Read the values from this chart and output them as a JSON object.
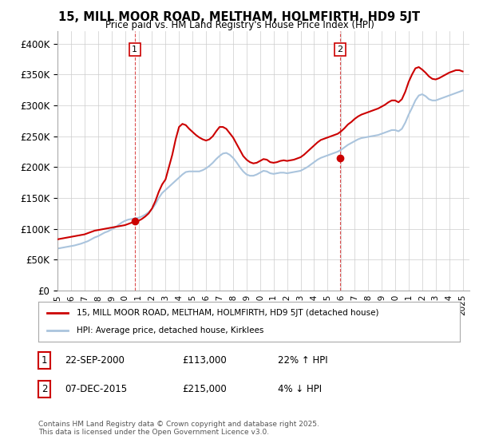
{
  "title": "15, MILL MOOR ROAD, MELTHAM, HOLMFIRTH, HD9 5JT",
  "subtitle": "Price paid vs. HM Land Registry's House Price Index (HPI)",
  "ylabel_ticks": [
    "£0",
    "£50K",
    "£100K",
    "£150K",
    "£200K",
    "£250K",
    "£300K",
    "£350K",
    "£400K"
  ],
  "ytick_values": [
    0,
    50000,
    100000,
    150000,
    200000,
    250000,
    300000,
    350000,
    400000
  ],
  "ylim": [
    0,
    420000
  ],
  "xlim_start": 1995.0,
  "xlim_end": 2025.5,
  "background_color": "#ffffff",
  "grid_color": "#cccccc",
  "hpi_color": "#aac4dd",
  "price_color": "#cc0000",
  "marker1_x": 2000.72,
  "marker1_y": 113000,
  "marker2_x": 2015.93,
  "marker2_y": 215000,
  "annotation1": "1",
  "annotation2": "2",
  "legend_label1": "15, MILL MOOR ROAD, MELTHAM, HOLMFIRTH, HD9 5JT (detached house)",
  "legend_label2": "HPI: Average price, detached house, Kirklees",
  "table_row1": [
    "1",
    "22-SEP-2000",
    "£113,000",
    "22% ↑ HPI"
  ],
  "table_row2": [
    "2",
    "07-DEC-2015",
    "£215,000",
    "4% ↓ HPI"
  ],
  "footnote": "Contains HM Land Registry data © Crown copyright and database right 2025.\nThis data is licensed under the Open Government Licence v3.0.",
  "hpi_data_x": [
    1995.0,
    1995.25,
    1995.5,
    1995.75,
    1996.0,
    1996.25,
    1996.5,
    1996.75,
    1997.0,
    1997.25,
    1997.5,
    1997.75,
    1998.0,
    1998.25,
    1998.5,
    1998.75,
    1999.0,
    1999.25,
    1999.5,
    1999.75,
    2000.0,
    2000.25,
    2000.5,
    2000.75,
    2001.0,
    2001.25,
    2001.5,
    2001.75,
    2002.0,
    2002.25,
    2002.5,
    2002.75,
    2003.0,
    2003.25,
    2003.5,
    2003.75,
    2004.0,
    2004.25,
    2004.5,
    2004.75,
    2005.0,
    2005.25,
    2005.5,
    2005.75,
    2006.0,
    2006.25,
    2006.5,
    2006.75,
    2007.0,
    2007.25,
    2007.5,
    2007.75,
    2008.0,
    2008.25,
    2008.5,
    2008.75,
    2009.0,
    2009.25,
    2009.5,
    2009.75,
    2010.0,
    2010.25,
    2010.5,
    2010.75,
    2011.0,
    2011.25,
    2011.5,
    2011.75,
    2012.0,
    2012.25,
    2012.5,
    2012.75,
    2013.0,
    2013.25,
    2013.5,
    2013.75,
    2014.0,
    2014.25,
    2014.5,
    2014.75,
    2015.0,
    2015.25,
    2015.5,
    2015.75,
    2016.0,
    2016.25,
    2016.5,
    2016.75,
    2017.0,
    2017.25,
    2017.5,
    2017.75,
    2018.0,
    2018.25,
    2018.5,
    2018.75,
    2019.0,
    2019.25,
    2019.5,
    2019.75,
    2020.0,
    2020.25,
    2020.5,
    2020.75,
    2021.0,
    2021.25,
    2021.5,
    2021.75,
    2022.0,
    2022.25,
    2022.5,
    2022.75,
    2023.0,
    2023.25,
    2023.5,
    2023.75,
    2024.0,
    2024.25,
    2024.5,
    2024.75,
    2025.0
  ],
  "hpi_data_y": [
    68000,
    69000,
    70000,
    71000,
    72000,
    73000,
    74500,
    76000,
    78000,
    80000,
    83000,
    86000,
    88000,
    91000,
    94000,
    96000,
    99000,
    102000,
    106000,
    110000,
    113000,
    115000,
    116000,
    117000,
    118000,
    120000,
    123000,
    127000,
    132000,
    140000,
    150000,
    158000,
    163000,
    168000,
    173000,
    178000,
    183000,
    188000,
    192000,
    193000,
    193000,
    193000,
    193000,
    195000,
    198000,
    202000,
    207000,
    213000,
    218000,
    222000,
    223000,
    220000,
    215000,
    208000,
    200000,
    193000,
    188000,
    186000,
    186000,
    188000,
    191000,
    194000,
    193000,
    190000,
    189000,
    190000,
    191000,
    191000,
    190000,
    191000,
    192000,
    193000,
    194000,
    197000,
    200000,
    204000,
    208000,
    212000,
    215000,
    217000,
    219000,
    221000,
    223000,
    225000,
    228000,
    232000,
    236000,
    239000,
    242000,
    245000,
    247000,
    248000,
    249000,
    250000,
    251000,
    252000,
    254000,
    256000,
    258000,
    260000,
    260000,
    258000,
    262000,
    272000,
    285000,
    296000,
    308000,
    316000,
    318000,
    315000,
    310000,
    308000,
    308000,
    310000,
    312000,
    314000,
    316000,
    318000,
    320000,
    322000,
    324000
  ],
  "price_data_x": [
    1995.0,
    1995.25,
    1995.5,
    1995.75,
    1996.0,
    1996.25,
    1996.5,
    1996.75,
    1997.0,
    1997.25,
    1997.5,
    1997.75,
    1998.0,
    1998.25,
    1998.5,
    1998.75,
    1999.0,
    1999.25,
    1999.5,
    1999.75,
    2000.0,
    2000.25,
    2000.5,
    2000.75,
    2001.0,
    2001.25,
    2001.5,
    2001.75,
    2002.0,
    2002.25,
    2002.5,
    2002.75,
    2003.0,
    2003.25,
    2003.5,
    2003.75,
    2004.0,
    2004.25,
    2004.5,
    2004.75,
    2005.0,
    2005.25,
    2005.5,
    2005.75,
    2006.0,
    2006.25,
    2006.5,
    2006.75,
    2007.0,
    2007.25,
    2007.5,
    2007.75,
    2008.0,
    2008.25,
    2008.5,
    2008.75,
    2009.0,
    2009.25,
    2009.5,
    2009.75,
    2010.0,
    2010.25,
    2010.5,
    2010.75,
    2011.0,
    2011.25,
    2011.5,
    2011.75,
    2012.0,
    2012.25,
    2012.5,
    2012.75,
    2013.0,
    2013.25,
    2013.5,
    2013.75,
    2014.0,
    2014.25,
    2014.5,
    2014.75,
    2015.0,
    2015.25,
    2015.5,
    2015.75,
    2016.0,
    2016.25,
    2016.5,
    2016.75,
    2017.0,
    2017.25,
    2017.5,
    2017.75,
    2018.0,
    2018.25,
    2018.5,
    2018.75,
    2019.0,
    2019.25,
    2019.5,
    2019.75,
    2020.0,
    2020.25,
    2020.5,
    2020.75,
    2021.0,
    2021.25,
    2021.5,
    2021.75,
    2022.0,
    2022.25,
    2022.5,
    2022.75,
    2023.0,
    2023.25,
    2023.5,
    2023.75,
    2024.0,
    2024.25,
    2024.5,
    2024.75,
    2025.0
  ],
  "price_data_y": [
    83000,
    84000,
    85000,
    86000,
    87000,
    88000,
    89000,
    90000,
    91000,
    93000,
    95000,
    97000,
    98000,
    99000,
    100000,
    101000,
    102000,
    103000,
    104000,
    105000,
    106000,
    108000,
    110000,
    112000,
    113000,
    116000,
    120000,
    125000,
    133000,
    145000,
    160000,
    172000,
    180000,
    200000,
    220000,
    245000,
    265000,
    270000,
    268000,
    262000,
    257000,
    252000,
    248000,
    245000,
    243000,
    245000,
    250000,
    258000,
    265000,
    265000,
    262000,
    255000,
    248000,
    238000,
    228000,
    218000,
    212000,
    208000,
    206000,
    207000,
    210000,
    213000,
    212000,
    208000,
    207000,
    208000,
    210000,
    211000,
    210000,
    211000,
    212000,
    214000,
    216000,
    220000,
    225000,
    230000,
    235000,
    240000,
    244000,
    246000,
    248000,
    250000,
    252000,
    254000,
    258000,
    263000,
    269000,
    273000,
    278000,
    282000,
    285000,
    287000,
    289000,
    291000,
    293000,
    295000,
    298000,
    301000,
    305000,
    308000,
    308000,
    305000,
    310000,
    322000,
    338000,
    350000,
    360000,
    362000,
    358000,
    353000,
    347000,
    343000,
    342000,
    344000,
    347000,
    350000,
    353000,
    355000,
    357000,
    357000,
    355000
  ]
}
